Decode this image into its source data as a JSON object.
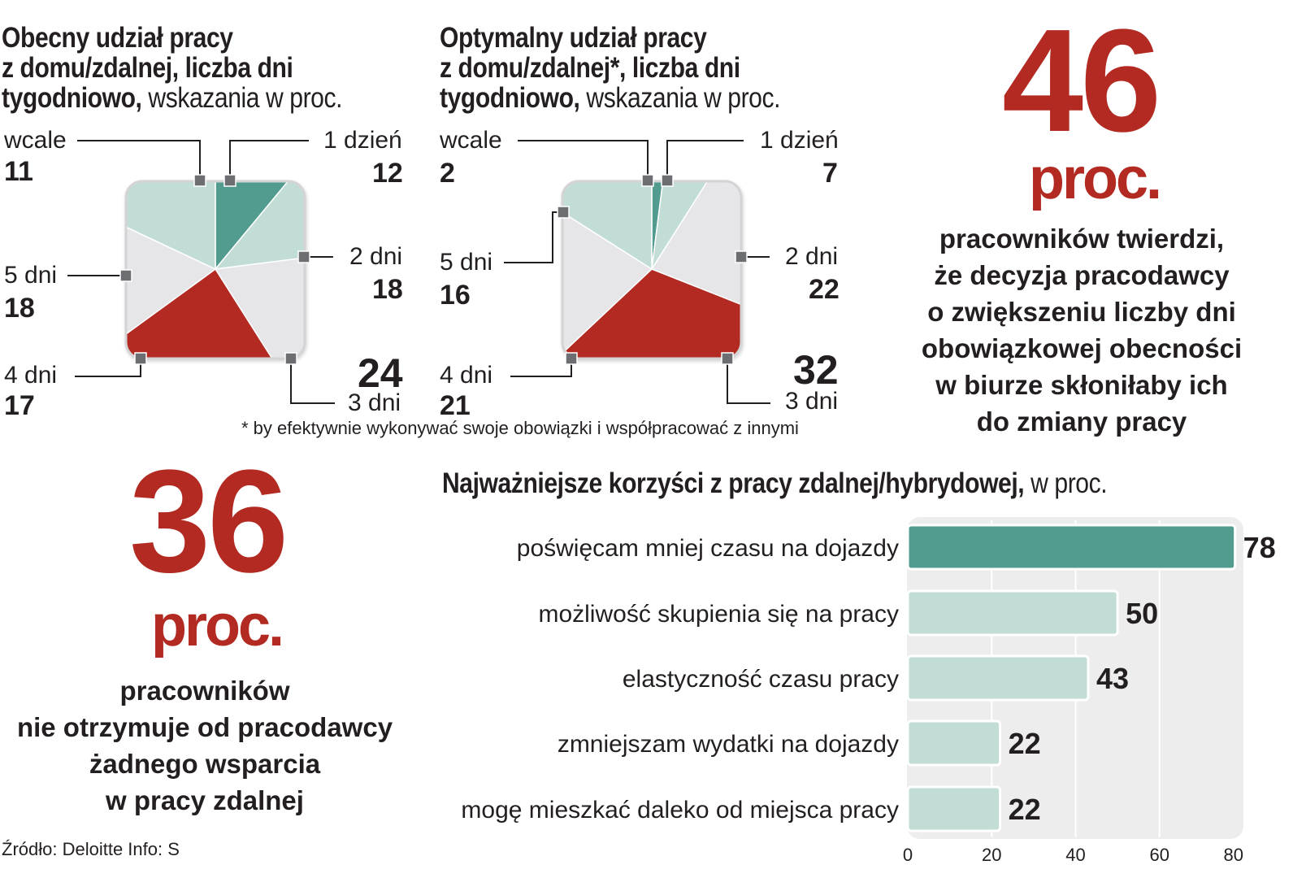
{
  "pie_left": {
    "title_line1": "Obecny udział pracy",
    "title_line2": "z domu/zdalnej, liczba dni",
    "title_line3_bold": "tygodniowo,",
    "title_line3_light": " wskazania w proc.",
    "labels": {
      "wcale": "wcale",
      "wcale_val": "11",
      "d1": "1 dzień",
      "d1_val": "12",
      "d2": "2 dni",
      "d2_val": "18",
      "d3": "3 dni",
      "d3_val": "24",
      "d4": "4 dni",
      "d4_val": "17",
      "d5": "5 dni",
      "d5_val": "18"
    }
  },
  "pie_right": {
    "title_line1": "Optymalny udział  pracy",
    "title_line2": "z domu/zdalnej*, liczba dni",
    "title_line3_bold": "tygodniowo,",
    "title_line3_light": " wskazania w proc.",
    "labels": {
      "wcale": "wcale",
      "wcale_val": "2",
      "d1": "1 dzień",
      "d1_val": "7",
      "d2": "2 dni",
      "d2_val": "22",
      "d3": "3 dni",
      "d3_val": "32",
      "d4": "4 dni",
      "d4_val": "21",
      "d5": "5 dni",
      "d5_val": "16"
    },
    "footnote": "* by efektywnie wykonywać swoje obowiązki i współpracować z innymi"
  },
  "stat_46": {
    "number": "46",
    "unit": "proc.",
    "text_lines": [
      "pracowników twierdzi,",
      "że decyzja pracodawcy",
      "o zwiększeniu liczby dni",
      "obowiązkowej obecności",
      "w biurze skłoniłaby ich",
      "do zmiany pracy"
    ]
  },
  "stat_36": {
    "number": "36",
    "unit": "proc.",
    "text_lines": [
      "pracowników",
      "nie otrzymuje od pracodawcy",
      "żadnego wsparcia",
      "w pracy zdalnej"
    ]
  },
  "bar_title_bold": "Najważniejsze korzyści z pracy zdalnej/hybrydowej,",
  "bar_title_light": " w proc.",
  "source": "Źródło: Deloitte   Info: S",
  "colors": {
    "red": "#b22a22",
    "teal_dark": "#519b8f",
    "teal_light": "#c2ddd6",
    "gray": "#e6e6e8",
    "panel": "#ededee"
  },
  "chart_data": [
    {
      "type": "pie",
      "categories": [
        "wcale",
        "1 dzień",
        "2 dni",
        "3 dni",
        "4 dni",
        "5 dni"
      ],
      "values": [
        11,
        12,
        18,
        24,
        17,
        18
      ]
    },
    {
      "type": "pie",
      "categories": [
        "wcale",
        "1 dzień",
        "2 dni",
        "3 dni",
        "4 dni",
        "5 dni"
      ],
      "values": [
        2,
        7,
        22,
        32,
        21,
        16
      ]
    },
    {
      "type": "bar",
      "orientation": "horizontal",
      "categories": [
        "poświęcam mniej czasu na dojazdy",
        "możliwość skupienia się na pracy",
        "elastyczność czasu pracy",
        "zmniejszam wydatki na dojazdy",
        "mogę mieszkać daleko od miejsca pracy"
      ],
      "values": [
        78,
        50,
        43,
        22,
        22
      ],
      "value_labels": [
        "78",
        "50",
        "43",
        "22",
        "22"
      ],
      "xlim": [
        0,
        80
      ],
      "xticks": [
        "0",
        "20",
        "40",
        "60",
        "80"
      ],
      "grid": true
    }
  ]
}
